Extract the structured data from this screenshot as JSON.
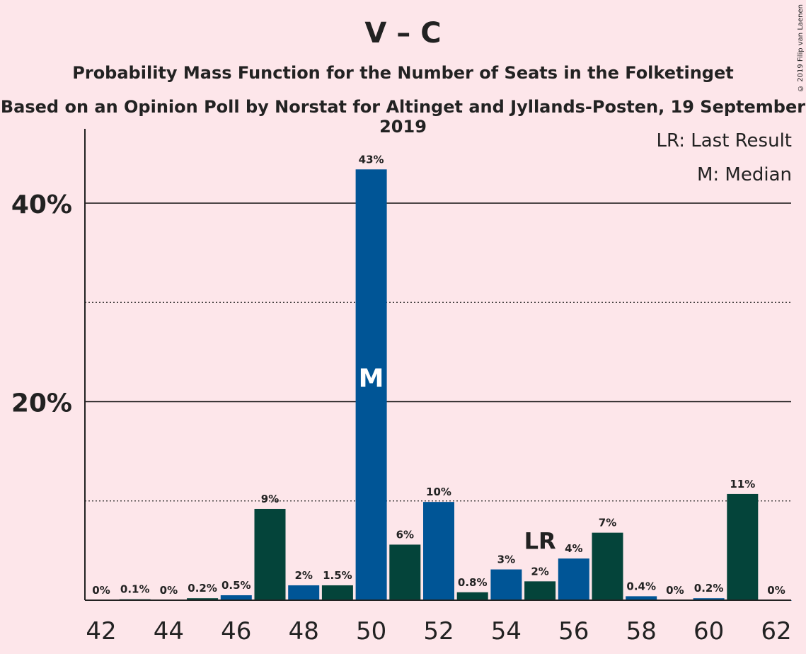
{
  "title": "V – C",
  "subtitle": "Probability Mass Function for the Number of Seats in the Folketinget",
  "subtitle2": "Based on an Opinion Poll by Norstat for Altinget and Jyllands-Posten, 19 September 2019",
  "copyright": "© 2019 Filip van Laenen",
  "legend": {
    "lr": "LR: Last Result",
    "median": "M: Median"
  },
  "colors": {
    "background": "#fde6ea",
    "blue": "#005596",
    "green": "#04443a"
  },
  "chart_data": {
    "type": "bar",
    "x": [
      42,
      43,
      44,
      45,
      46,
      47,
      48,
      49,
      50,
      51,
      52,
      53,
      54,
      55,
      56,
      57,
      58,
      59,
      60,
      61,
      62
    ],
    "values": [
      0,
      0.1,
      0,
      0.2,
      0.5,
      9.2,
      1.5,
      1.5,
      43.4,
      5.6,
      9.9,
      0.8,
      3.1,
      1.9,
      4.2,
      6.8,
      0.4,
      0,
      0.2,
      10.7,
      0
    ],
    "labels": [
      "0%",
      "0.1%",
      "0%",
      "0.2%",
      "0.5%",
      "9%",
      "2%",
      "1.5%",
      "43%",
      "6%",
      "10%",
      "0.8%",
      "3%",
      "2%",
      "4%",
      "7%",
      "0.4%",
      "0%",
      "0.2%",
      "11%",
      "0%"
    ],
    "bar_colors": [
      "blue",
      "green",
      "blue",
      "green",
      "blue",
      "green",
      "blue",
      "green",
      "blue",
      "green",
      "blue",
      "green",
      "blue",
      "green",
      "blue",
      "green",
      "blue",
      "green",
      "blue",
      "green",
      "blue"
    ],
    "x_ticks": [
      "42",
      "44",
      "46",
      "48",
      "50",
      "52",
      "54",
      "56",
      "58",
      "60",
      "62"
    ],
    "y_ticks": [
      {
        "value": 20,
        "label": "20%"
      },
      {
        "value": 40,
        "label": "40%"
      }
    ],
    "minor_gridlines": [
      10,
      30
    ],
    "ylim": [
      0,
      47
    ],
    "median": {
      "x": 50,
      "label": "M"
    },
    "last_result": {
      "x": 55,
      "label": "LR"
    },
    "xlabel": "",
    "ylabel": ""
  }
}
